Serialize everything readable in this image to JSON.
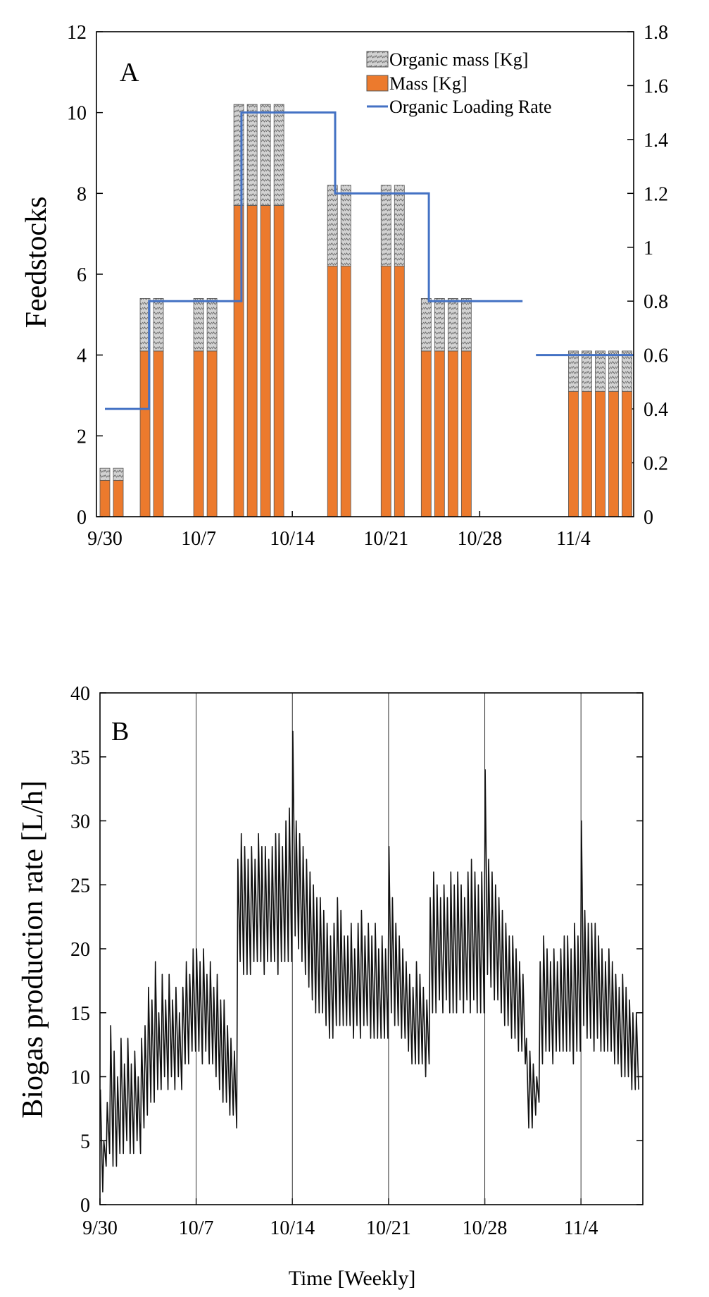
{
  "colors": {
    "mass": "#EC7A2D",
    "organic": "#c8c8c8",
    "olr": "#4472C4",
    "biogas": "#111111",
    "axis": "#000000"
  },
  "chart_data": [
    {
      "panel": "A",
      "type": "bar",
      "ylabel": "Feedstocks",
      "ylim": [
        0,
        12
      ],
      "yticks": [
        "0",
        "2",
        "4",
        "6",
        "8",
        "10",
        "12"
      ],
      "y2lim": [
        0,
        1.8
      ],
      "y2ticks": [
        "0",
        "0.2",
        "0.4",
        "0.6",
        "0.8",
        "1",
        "1.2",
        "1.4",
        "1.6",
        "1.8"
      ],
      "xlim": [
        0,
        39.5
      ],
      "xticks": [
        {
          "day": 0,
          "label": "9/30"
        },
        {
          "day": 7,
          "label": "10/7"
        },
        {
          "day": 14,
          "label": "10/14"
        },
        {
          "day": 21,
          "label": "10/21"
        },
        {
          "day": 28,
          "label": "10/28"
        },
        {
          "day": 35,
          "label": "11/4"
        }
      ],
      "legend": [
        "Organic mass [Kg]",
        "Mass [Kg]",
        "Organic Loading Rate"
      ],
      "legend_position": "top-right",
      "bars": [
        {
          "day": 0,
          "mass": 0.9,
          "total": 1.2
        },
        {
          "day": 1,
          "mass": 0.9,
          "total": 1.2
        },
        {
          "day": 3,
          "mass": 4.1,
          "total": 5.4
        },
        {
          "day": 4,
          "mass": 4.1,
          "total": 5.4
        },
        {
          "day": 7,
          "mass": 4.1,
          "total": 5.4
        },
        {
          "day": 8,
          "mass": 4.1,
          "total": 5.4
        },
        {
          "day": 10,
          "mass": 7.7,
          "total": 10.2
        },
        {
          "day": 11,
          "mass": 7.7,
          "total": 10.2
        },
        {
          "day": 12,
          "mass": 7.7,
          "total": 10.2
        },
        {
          "day": 13,
          "mass": 7.7,
          "total": 10.2
        },
        {
          "day": 17,
          "mass": 6.2,
          "total": 8.2
        },
        {
          "day": 18,
          "mass": 6.2,
          "total": 8.2
        },
        {
          "day": 21,
          "mass": 6.2,
          "total": 8.2
        },
        {
          "day": 22,
          "mass": 6.2,
          "total": 8.2
        },
        {
          "day": 24,
          "mass": 4.1,
          "total": 5.4
        },
        {
          "day": 25,
          "mass": 4.1,
          "total": 5.4
        },
        {
          "day": 26,
          "mass": 4.1,
          "total": 5.4
        },
        {
          "day": 27,
          "mass": 4.1,
          "total": 5.4
        },
        {
          "day": 35,
          "mass": 3.1,
          "total": 4.1
        },
        {
          "day": 36,
          "mass": 3.1,
          "total": 4.1
        },
        {
          "day": 37,
          "mass": 3.1,
          "total": 4.1
        },
        {
          "day": 38,
          "mass": 3.1,
          "total": 4.1
        },
        {
          "day": 39,
          "mass": 3.1,
          "total": 4.1
        }
      ],
      "olr_segments": [
        {
          "x0": 0,
          "x1": 3.3,
          "y": 0.4
        },
        {
          "x0": 3.3,
          "x1": 10.2,
          "y": 0.8
        },
        {
          "x0": 10.2,
          "x1": 17.2,
          "y": 1.5
        },
        {
          "x0": 17.2,
          "x1": 24.2,
          "y": 1.2
        },
        {
          "x0": 24.2,
          "x1": 31.2,
          "y": 0.8
        },
        {
          "x0": 32.2,
          "x1": 39.5,
          "y": 0.6
        }
      ]
    },
    {
      "panel": "B",
      "type": "line",
      "ylabel": "Biogas production rate [L/h]",
      "xlabel": "Time [Weekly]",
      "ylim": [
        0,
        40
      ],
      "yticks": [
        "0",
        "5",
        "10",
        "15",
        "20",
        "25",
        "30",
        "35",
        "40"
      ],
      "xlim": [
        0,
        39.5
      ],
      "xticks": [
        {
          "day": 0,
          "label": "9/30"
        },
        {
          "day": 7,
          "label": "10/7"
        },
        {
          "day": 14,
          "label": "10/14"
        },
        {
          "day": 21,
          "label": "10/21"
        },
        {
          "day": 28,
          "label": "10/28"
        },
        {
          "day": 35,
          "label": "11/4"
        }
      ],
      "weekly_gridlines": [
        7,
        14,
        21,
        28,
        35
      ],
      "daily_cycles": [
        {
          "day": 0,
          "peaks": [
            9,
            5,
            8,
            14
          ],
          "troughs": [
            1,
            3,
            4,
            3
          ]
        },
        {
          "day": 1,
          "peaks": [
            12,
            10,
            13,
            11
          ],
          "troughs": [
            3,
            4,
            4,
            5
          ]
        },
        {
          "day": 2,
          "peaks": [
            13,
            11,
            12,
            10
          ],
          "troughs": [
            4,
            4,
            5,
            4
          ]
        },
        {
          "day": 3,
          "peaks": [
            13,
            14,
            17,
            16
          ],
          "troughs": [
            6,
            7,
            8,
            8
          ]
        },
        {
          "day": 4,
          "peaks": [
            19,
            15,
            18,
            16
          ],
          "troughs": [
            9,
            9,
            10,
            9
          ]
        },
        {
          "day": 5,
          "peaks": [
            18,
            16,
            17,
            15
          ],
          "troughs": [
            10,
            9,
            10,
            9
          ]
        },
        {
          "day": 6,
          "peaks": [
            17,
            19,
            18,
            20
          ],
          "troughs": [
            11,
            11,
            12,
            12
          ]
        },
        {
          "day": 7,
          "peaks": [
            20,
            19,
            20,
            18
          ],
          "troughs": [
            12,
            11,
            12,
            11
          ]
        },
        {
          "day": 8,
          "peaks": [
            19,
            17,
            18,
            16
          ],
          "troughs": [
            11,
            10,
            9,
            8
          ]
        },
        {
          "day": 9,
          "peaks": [
            16,
            14,
            13,
            12
          ],
          "troughs": [
            8,
            7,
            7,
            6
          ]
        },
        {
          "day": 10,
          "peaks": [
            27,
            29,
            28,
            27
          ],
          "troughs": [
            19,
            18,
            18,
            18
          ]
        },
        {
          "day": 11,
          "peaks": [
            28,
            27,
            29,
            28
          ],
          "troughs": [
            19,
            19,
            19,
            18
          ]
        },
        {
          "day": 12,
          "peaks": [
            28,
            27,
            28,
            29
          ],
          "troughs": [
            19,
            19,
            19,
            18
          ]
        },
        {
          "day": 13,
          "peaks": [
            29,
            28,
            30,
            31
          ],
          "troughs": [
            19,
            19,
            19,
            19
          ]
        },
        {
          "day": 14,
          "peaks": [
            37,
            30,
            29,
            28
          ],
          "troughs": [
            21,
            20,
            19,
            18
          ]
        },
        {
          "day": 15,
          "peaks": [
            27,
            26,
            25,
            24
          ],
          "troughs": [
            17,
            16,
            15,
            15
          ]
        },
        {
          "day": 16,
          "peaks": [
            24,
            23,
            22,
            21
          ],
          "troughs": [
            15,
            14,
            13,
            13
          ]
        },
        {
          "day": 17,
          "peaks": [
            22,
            24,
            23,
            21
          ],
          "troughs": [
            14,
            14,
            14,
            14
          ]
        },
        {
          "day": 18,
          "peaks": [
            21,
            22,
            20,
            22
          ],
          "troughs": [
            14,
            13,
            14,
            13
          ]
        },
        {
          "day": 19,
          "peaks": [
            23,
            21,
            22,
            21
          ],
          "troughs": [
            14,
            14,
            13,
            13
          ]
        },
        {
          "day": 20,
          "peaks": [
            22,
            20,
            21,
            20
          ],
          "troughs": [
            13,
            13,
            13,
            13
          ]
        },
        {
          "day": 21,
          "peaks": [
            28,
            24,
            22,
            21
          ],
          "troughs": [
            15,
            14,
            14,
            13
          ]
        },
        {
          "day": 22,
          "peaks": [
            20,
            19,
            18,
            17
          ],
          "troughs": [
            13,
            12,
            11,
            11
          ]
        },
        {
          "day": 23,
          "peaks": [
            19,
            18,
            17,
            16
          ],
          "troughs": [
            11,
            11,
            10,
            11
          ]
        },
        {
          "day": 24,
          "peaks": [
            24,
            26,
            25,
            24
          ],
          "troughs": [
            15,
            15,
            16,
            15
          ]
        },
        {
          "day": 25,
          "peaks": [
            25,
            24,
            26,
            25
          ],
          "troughs": [
            16,
            15,
            15,
            15
          ]
        },
        {
          "day": 26,
          "peaks": [
            26,
            25,
            24,
            26
          ],
          "troughs": [
            16,
            15,
            16,
            15
          ]
        },
        {
          "day": 27,
          "peaks": [
            27,
            26,
            25,
            26
          ],
          "troughs": [
            16,
            15,
            15,
            15
          ]
        },
        {
          "day": 28,
          "peaks": [
            34,
            27,
            26,
            25
          ],
          "troughs": [
            18,
            17,
            16,
            16
          ]
        },
        {
          "day": 29,
          "peaks": [
            24,
            23,
            22,
            21
          ],
          "troughs": [
            15,
            14,
            14,
            13
          ]
        },
        {
          "day": 30,
          "peaks": [
            21,
            20,
            19,
            18
          ],
          "troughs": [
            13,
            12,
            12,
            11
          ]
        },
        {
          "day": 31,
          "peaks": [
            13,
            12,
            11,
            10
          ],
          "troughs": [
            6,
            6,
            7,
            8
          ]
        },
        {
          "day": 32,
          "peaks": [
            19,
            21,
            20,
            19
          ],
          "troughs": [
            11,
            12,
            12,
            11
          ]
        },
        {
          "day": 33,
          "peaks": [
            20,
            19,
            20,
            21
          ],
          "troughs": [
            12,
            12,
            12,
            12
          ]
        },
        {
          "day": 34,
          "peaks": [
            21,
            20,
            22,
            21
          ],
          "troughs": [
            12,
            11,
            12,
            12
          ]
        },
        {
          "day": 35,
          "peaks": [
            30,
            23,
            22,
            22
          ],
          "troughs": [
            14,
            13,
            13,
            12
          ]
        },
        {
          "day": 36,
          "peaks": [
            22,
            21,
            20,
            19
          ],
          "troughs": [
            13,
            12,
            12,
            12
          ]
        },
        {
          "day": 37,
          "peaks": [
            20,
            19,
            18,
            17
          ],
          "troughs": [
            12,
            11,
            11,
            10
          ]
        },
        {
          "day": 38,
          "peaks": [
            18,
            17,
            16,
            15
          ],
          "troughs": [
            10,
            10,
            9,
            9
          ]
        },
        {
          "day": 39,
          "peaks": [
            15
          ],
          "troughs": [
            9
          ]
        }
      ]
    }
  ]
}
